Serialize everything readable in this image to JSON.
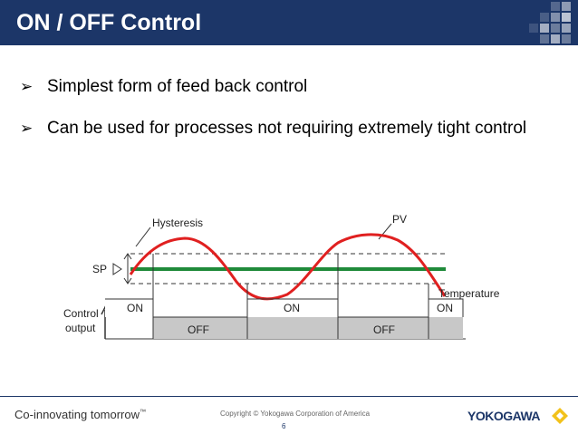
{
  "header": {
    "title": "ON / OFF Control"
  },
  "bullets": [
    "Simplest form of feed back control",
    "Can be used for processes not requiring extremely tight control"
  ],
  "diagram": {
    "label_hysteresis": "Hysteresis",
    "label_pv": "PV",
    "label_sp": "SP",
    "label_temperature": "Temperature",
    "label_control_1": "Control",
    "label_control_2": "output",
    "states": [
      "ON",
      "OFF",
      "ON",
      "OFF",
      "ON"
    ],
    "colors": {
      "pv": "#e02020",
      "sp": "#1f8a3a",
      "off_fill": "#c8c8c8"
    }
  },
  "footer": {
    "tagline": "Co-innovating tomorrow",
    "tagline_mark": "™",
    "copyright": "Copyright © Yokogawa Corporation of America",
    "page": "6",
    "logo": "YOKOGAWA"
  },
  "theme": {
    "header_bg": "#1c3668",
    "logo_yellow": "#f2c21b"
  }
}
